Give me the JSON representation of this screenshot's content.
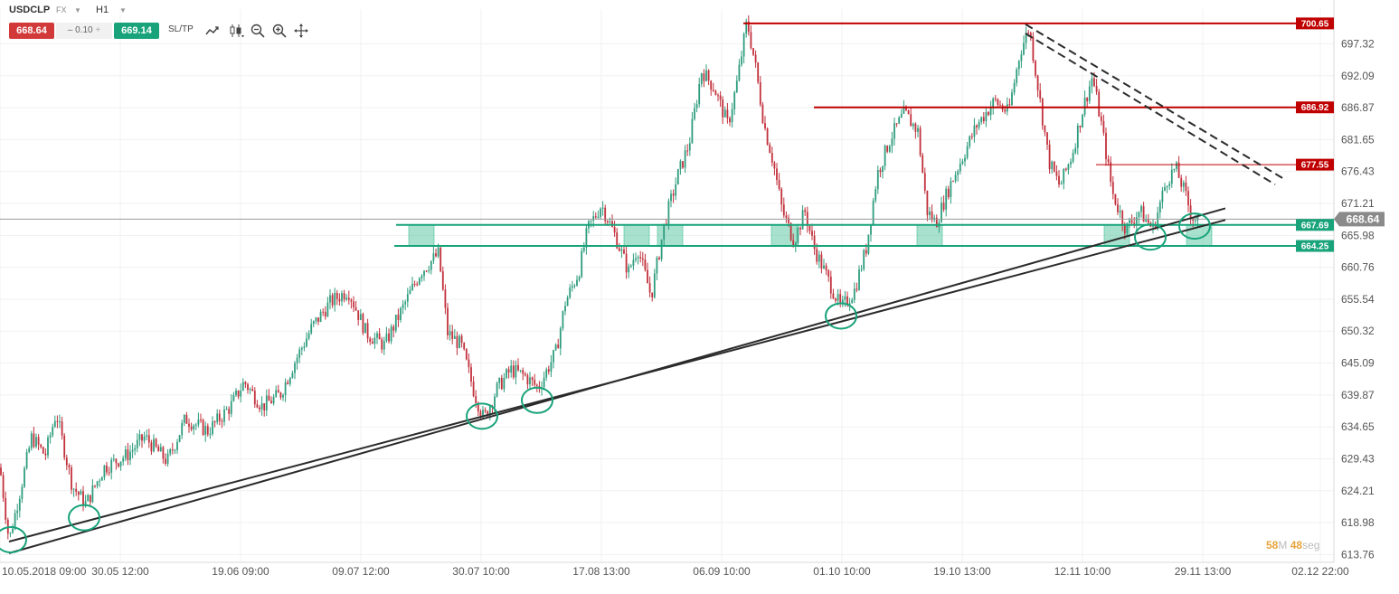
{
  "toolbar": {
    "symbol": "USDCLP",
    "market": "FX",
    "timeframe": "H1",
    "bid": "668.64",
    "spread": "0.10",
    "spread_minus": "–",
    "spread_plus": "+",
    "ask": "669.14",
    "sltp_label": "SL/TP",
    "icons": [
      "line-chart-icon",
      "candles-icon",
      "zoom-out-icon",
      "zoom-in-icon",
      "crosshair-icon"
    ]
  },
  "timer": {
    "minutes": "58",
    "minutes_unit": "M",
    "seconds": "48",
    "seconds_unit": "seg"
  },
  "colors": {
    "up": "#2e9c7e",
    "down": "#c2303b",
    "resistance": "#c00000",
    "support": "#18a37a",
    "trend": "#2b2b2b",
    "current": "#999999"
  },
  "chart_data": {
    "type": "candlestick",
    "instrument": "USDCLP",
    "timeframe": "H1",
    "ylim": [
      612.5,
      703.0
    ],
    "yticks": [
      697.32,
      692.09,
      686.87,
      681.65,
      676.43,
      671.21,
      665.98,
      660.76,
      655.54,
      650.32,
      645.09,
      639.87,
      634.65,
      629.43,
      624.21,
      618.98,
      613.76
    ],
    "xlim": [
      0,
      1475
    ],
    "xticks": [
      {
        "label": "10.05.2018 09:00",
        "x": 0
      },
      {
        "label": "30.05 12:00",
        "x": 133
      },
      {
        "label": "19.06 09:00",
        "x": 266
      },
      {
        "label": "09.07 12:00",
        "x": 399
      },
      {
        "label": "30.07 10:00",
        "x": 532
      },
      {
        "label": "17.08 13:00",
        "x": 665
      },
      {
        "label": "06.09 10:00",
        "x": 798
      },
      {
        "label": "01.10 10:00",
        "x": 931
      },
      {
        "label": "19.10 13:00",
        "x": 1064
      },
      {
        "label": "12.11 10:00",
        "x": 1197
      },
      {
        "label": "29.11 13:00",
        "x": 1330
      },
      {
        "label": "02.12 22:00",
        "x": 1460
      }
    ],
    "price_path": [
      [
        0,
        628
      ],
      [
        10,
        616
      ],
      [
        22,
        624
      ],
      [
        35,
        633
      ],
      [
        50,
        630
      ],
      [
        62,
        637
      ],
      [
        80,
        625
      ],
      [
        95,
        622
      ],
      [
        115,
        628
      ],
      [
        140,
        630
      ],
      [
        160,
        633
      ],
      [
        185,
        629
      ],
      [
        205,
        636
      ],
      [
        230,
        634
      ],
      [
        255,
        638
      ],
      [
        270,
        642
      ],
      [
        290,
        638
      ],
      [
        310,
        640
      ],
      [
        325,
        645
      ],
      [
        345,
        651
      ],
      [
        365,
        655
      ],
      [
        385,
        657
      ],
      [
        405,
        650
      ],
      [
        425,
        648
      ],
      [
        445,
        654
      ],
      [
        465,
        660
      ],
      [
        485,
        663
      ],
      [
        495,
        650
      ],
      [
        510,
        648
      ],
      [
        525,
        640
      ],
      [
        535,
        636
      ],
      [
        550,
        641
      ],
      [
        565,
        644
      ],
      [
        580,
        643
      ],
      [
        595,
        641
      ],
      [
        615,
        647
      ],
      [
        625,
        655
      ],
      [
        640,
        660
      ],
      [
        650,
        667
      ],
      [
        665,
        671
      ],
      [
        680,
        666
      ],
      [
        695,
        660
      ],
      [
        705,
        664
      ],
      [
        720,
        656
      ],
      [
        735,
        668
      ],
      [
        750,
        676
      ],
      [
        762,
        681
      ],
      [
        776,
        693
      ],
      [
        790,
        690
      ],
      [
        805,
        684
      ],
      [
        815,
        691
      ],
      [
        826,
        701
      ],
      [
        835,
        694
      ],
      [
        845,
        684
      ],
      [
        855,
        678
      ],
      [
        865,
        670
      ],
      [
        878,
        665
      ],
      [
        890,
        670
      ],
      [
        900,
        664
      ],
      [
        915,
        659
      ],
      [
        930,
        654
      ],
      [
        945,
        657
      ],
      [
        958,
        664
      ],
      [
        970,
        676
      ],
      [
        985,
        682
      ],
      [
        1000,
        686
      ],
      [
        1015,
        683
      ],
      [
        1025,
        670
      ],
      [
        1035,
        668
      ],
      [
        1050,
        674
      ],
      [
        1065,
        679
      ],
      [
        1080,
        684
      ],
      [
        1100,
        688
      ],
      [
        1115,
        686
      ],
      [
        1128,
        696
      ],
      [
        1138,
        700
      ],
      [
        1148,
        690
      ],
      [
        1160,
        678
      ],
      [
        1172,
        674
      ],
      [
        1185,
        679
      ],
      [
        1198,
        687
      ],
      [
        1208,
        692
      ],
      [
        1218,
        684
      ],
      [
        1230,
        673
      ],
      [
        1245,
        667
      ],
      [
        1260,
        670
      ],
      [
        1275,
        667
      ],
      [
        1290,
        675
      ],
      [
        1300,
        677
      ],
      [
        1310,
        673
      ],
      [
        1318,
        669
      ],
      [
        1325,
        668.6
      ]
    ],
    "horizontal_levels": [
      {
        "value": 700.65,
        "label": "700.65",
        "kind": "resistance",
        "x_from": 822
      },
      {
        "value": 686.92,
        "label": "686.92",
        "kind": "resistance",
        "x_from": 900
      },
      {
        "value": 677.55,
        "label": "677.55",
        "kind": "resistance-minor",
        "x_from": 1212
      },
      {
        "value": 667.69,
        "label": "667.69",
        "kind": "support",
        "x_from": 438
      },
      {
        "value": 664.25,
        "label": "664.25",
        "kind": "support",
        "x_from": 436
      }
    ],
    "current_price": {
      "value": 668.64,
      "label": "668.64"
    },
    "support_zones": [
      {
        "x_from": 452,
        "x_to": 480,
        "y_from": 664.3,
        "y_to": 667.7
      },
      {
        "x_from": 690,
        "x_to": 718,
        "y_from": 664.3,
        "y_to": 667.7
      },
      {
        "x_from": 727,
        "x_to": 755,
        "y_from": 664.3,
        "y_to": 667.7
      },
      {
        "x_from": 853,
        "x_to": 881,
        "y_from": 664.3,
        "y_to": 667.7
      },
      {
        "x_from": 1014,
        "x_to": 1042,
        "y_from": 664.3,
        "y_to": 667.7
      },
      {
        "x_from": 1221,
        "x_to": 1249,
        "y_from": 664.3,
        "y_to": 667.7
      },
      {
        "x_from": 1312,
        "x_to": 1340,
        "y_from": 664.3,
        "y_to": 667.7
      }
    ],
    "trendlines": [
      {
        "style": "solid",
        "from": [
          10,
          614.0
        ],
        "to": [
          1355,
          670.4
        ]
      },
      {
        "style": "solid",
        "from": [
          10,
          615.9
        ],
        "to": [
          1355,
          668.5
        ]
      },
      {
        "style": "dashed",
        "from": [
          1134,
          700.5
        ],
        "to": [
          1420,
          675.2
        ]
      },
      {
        "style": "dashed",
        "from": [
          1134,
          699.0
        ],
        "to": [
          1410,
          674.3
        ]
      }
    ],
    "touch_points": [
      {
        "x": 12,
        "y": 616.2
      },
      {
        "x": 93,
        "y": 619.8
      },
      {
        "x": 533,
        "y": 636.4
      },
      {
        "x": 594,
        "y": 639.0
      },
      {
        "x": 930,
        "y": 652.8
      },
      {
        "x": 1272,
        "y": 665.7
      },
      {
        "x": 1321,
        "y": 667.5
      }
    ]
  }
}
